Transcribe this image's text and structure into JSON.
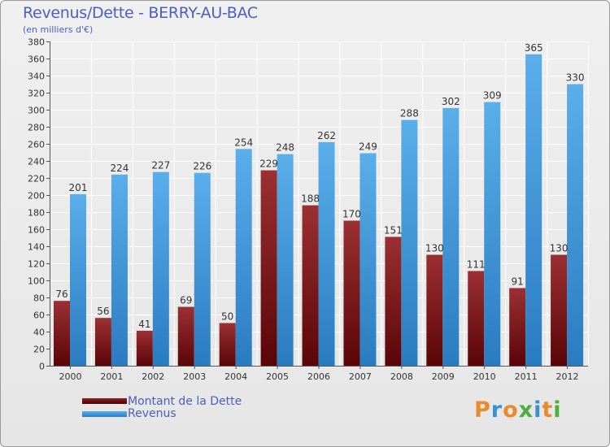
{
  "title": "Revenus/Dette - BERRY-AU-BAC",
  "subtitle": "(en milliers d'€)",
  "legend": {
    "debt": "Montant de la Dette",
    "revenue": "Revenus"
  },
  "logo": "Proxiti",
  "colors": {
    "debt_top": "#9b3033",
    "debt_bottom": "#5a0508",
    "revenue_top": "#5aaeea",
    "revenue_bottom": "#2a7cc0",
    "text": "#4a5fc0"
  },
  "chart_data": {
    "type": "bar",
    "categories": [
      "2000",
      "2001",
      "2002",
      "2003",
      "2004",
      "2005",
      "2006",
      "2007",
      "2008",
      "2009",
      "2010",
      "2011",
      "2012"
    ],
    "series": [
      {
        "name": "Montant de la Dette",
        "values": [
          76,
          56,
          41,
          69,
          50,
          229,
          188,
          170,
          151,
          130,
          111,
          91,
          130
        ]
      },
      {
        "name": "Revenus",
        "values": [
          201,
          224,
          227,
          226,
          254,
          248,
          262,
          249,
          288,
          302,
          309,
          365,
          330
        ]
      }
    ],
    "ylim": [
      0,
      380
    ],
    "yticks": [
      0,
      20,
      40,
      60,
      80,
      100,
      120,
      140,
      160,
      180,
      200,
      220,
      240,
      260,
      280,
      300,
      320,
      340,
      360,
      380
    ],
    "grid": true,
    "legend_position": "bottom-left"
  }
}
